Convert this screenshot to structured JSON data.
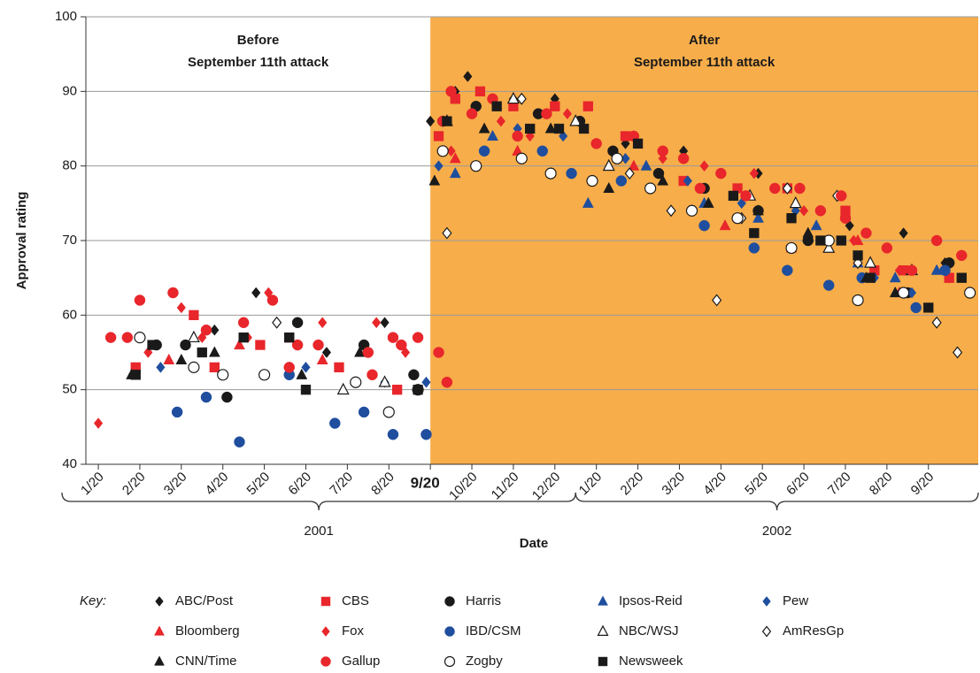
{
  "chart_data": {
    "type": "scatter",
    "xlabel": "Date",
    "ylabel": "Approval rating",
    "ylim": [
      40,
      100
    ],
    "yticks": [
      40,
      50,
      60,
      70,
      80,
      90,
      100
    ],
    "grid": true,
    "xlim": [
      -0.3,
      21.2
    ],
    "xticks": [
      {
        "value": 0,
        "label": "1/20"
      },
      {
        "value": 1,
        "label": "2/20"
      },
      {
        "value": 2,
        "label": "3/20"
      },
      {
        "value": 3,
        "label": "4/20"
      },
      {
        "value": 4,
        "label": "5/20"
      },
      {
        "value": 5,
        "label": "6/20"
      },
      {
        "value": 6,
        "label": "7/20"
      },
      {
        "value": 7,
        "label": "8/20"
      },
      {
        "value": 8,
        "label": "9/20",
        "bold": true
      },
      {
        "value": 9,
        "label": "10/20"
      },
      {
        "value": 10,
        "label": "11/20"
      },
      {
        "value": 11,
        "label": "12/20"
      },
      {
        "value": 12,
        "label": "1/20"
      },
      {
        "value": 13,
        "label": "2/20"
      },
      {
        "value": 14,
        "label": "3/20"
      },
      {
        "value": 15,
        "label": "4/20"
      },
      {
        "value": 16,
        "label": "5/20"
      },
      {
        "value": 17,
        "label": "6/20"
      },
      {
        "value": 18,
        "label": "7/20"
      },
      {
        "value": 19,
        "label": "8/20"
      },
      {
        "value": 20,
        "label": "9/20"
      }
    ],
    "years": [
      "2001",
      "2002"
    ],
    "shade_color": "#f7ad4a",
    "annotations": [
      [
        "Before",
        "September 11th attack"
      ],
      [
        "After",
        "September 11th attack"
      ]
    ],
    "legend_title": "Key:",
    "series": [
      {
        "name": "ABC/Post",
        "color": "#1a1a1a",
        "marker": "diamond",
        "x": [
          2.8,
          3.8,
          5.5,
          6.9,
          8.0,
          8.6,
          8.9,
          10.0,
          11.0,
          12.7,
          14.1,
          15.9,
          16.9,
          18.1,
          19.4,
          20.4
        ],
        "values": [
          58,
          63,
          55,
          59,
          86,
          90,
          92,
          89,
          89,
          83,
          82,
          79,
          77,
          72,
          71,
          67
        ]
      },
      {
        "name": "CBS",
        "color": "#e8262b",
        "marker": "square",
        "x": [
          0.9,
          2.3,
          2.8,
          3.9,
          4.6,
          5.8,
          7.2,
          8.2,
          8.6,
          9.2,
          10.0,
          11.0,
          11.8,
          12.7,
          14.1,
          15.4,
          16.6,
          18.0,
          18.7,
          19.4,
          20.5
        ],
        "values": [
          53,
          60,
          53,
          56,
          57,
          53,
          50,
          84,
          89,
          90,
          88,
          88,
          88,
          84,
          78,
          77,
          77,
          74,
          66,
          66,
          65
        ]
      },
      {
        "name": "Harris",
        "color": "#1a1a1a",
        "marker": "circle",
        "x": [
          1.4,
          2.1,
          3.1,
          4.8,
          6.4,
          7.6,
          8.3,
          9.1,
          10.6,
          11.6,
          12.4,
          13.5,
          14.6,
          15.9,
          17.1,
          18.3,
          19.5,
          20.5
        ],
        "values": [
          56,
          56,
          49,
          59,
          56,
          52,
          86,
          88,
          87,
          86,
          82,
          79,
          77,
          74,
          70,
          62,
          63,
          67
        ]
      },
      {
        "name": "Ipsos-Reid",
        "color": "#1f4e9e",
        "marker": "triangle",
        "x": [
          8.6,
          9.5,
          11.8,
          13.2,
          14.6,
          15.9,
          17.3,
          18.3,
          19.2,
          20.2
        ],
        "values": [
          79,
          84,
          75,
          80,
          75,
          73,
          72,
          67,
          65,
          66
        ]
      },
      {
        "name": "Pew",
        "color": "#1f4e9e",
        "marker": "diamond",
        "x": [
          1.5,
          4.6,
          5.0,
          6.9,
          7.9,
          8.2,
          10.1,
          11.2,
          12.7,
          14.2,
          15.5,
          16.8,
          18.7,
          19.6
        ],
        "values": [
          53,
          52,
          53,
          51,
          51,
          80,
          85,
          84,
          81,
          78,
          75,
          74,
          65,
          63
        ]
      },
      {
        "name": "Bloomberg",
        "color": "#e8262b",
        "marker": "triangle",
        "x": [
          1.7,
          3.4,
          5.4,
          8.6,
          10.1,
          12.9,
          15.1,
          16.7,
          18.3,
          19.3
        ],
        "values": [
          54,
          56,
          54,
          81,
          82,
          80,
          72,
          69,
          70,
          63
        ]
      },
      {
        "name": "Fox",
        "color": "#e8262b",
        "marker": "diamond",
        "x": [
          0,
          1.2,
          2.0,
          2.5,
          3.6,
          4.1,
          5.4,
          6.7,
          7.4,
          8.5,
          9.7,
          10.4,
          11.3,
          12.5,
          13.6,
          14.6,
          15.8,
          17.0,
          18.2,
          19.3,
          20.5
        ],
        "values": [
          45.5,
          55,
          61,
          57,
          57,
          63,
          59,
          59,
          55,
          82,
          86,
          84,
          87,
          81,
          81,
          80,
          79,
          74,
          70,
          66,
          65
        ]
      },
      {
        "name": "IBD/CSM",
        "color": "#1f4e9e",
        "marker": "circle",
        "x": [
          1.9,
          2.6,
          3.4,
          4.6,
          5.7,
          6.4,
          7.1,
          7.9,
          9.3,
          10.7,
          11.4,
          12.6,
          14.6,
          15.8,
          16.6,
          17.6,
          18.4,
          19.7,
          20.4
        ],
        "values": [
          47,
          49,
          43,
          52,
          45.5,
          47,
          44,
          44,
          82,
          82,
          79,
          78,
          72,
          69,
          66,
          64,
          65,
          61,
          66
        ]
      },
      {
        "name": "NBC/WSJ",
        "color": "#1a1a1a",
        "marker": "triangle",
        "hollow": true,
        "x": [
          2.3,
          5.9,
          6.9,
          8.4,
          10.0,
          11.5,
          12.3,
          15.7,
          16.8,
          17.6,
          18.6,
          19.6
        ],
        "values": [
          57,
          50,
          51,
          86,
          89,
          86,
          80,
          76,
          75,
          69,
          67,
          66
        ]
      },
      {
        "name": "AmResGp",
        "color": "#1a1a1a",
        "marker": "diamond",
        "hollow": true,
        "x": [
          4.3,
          8.4,
          10.2,
          12.8,
          13.8,
          14.9,
          15.5,
          16.6,
          17.8,
          18.3,
          20.2,
          20.7
        ],
        "values": [
          59,
          71,
          89,
          79,
          74,
          62,
          73,
          77,
          76,
          67,
          59,
          55
        ]
      },
      {
        "name": "CNN/Time",
        "color": "#1a1a1a",
        "marker": "triangle",
        "x": [
          0.8,
          2.0,
          2.8,
          4.9,
          6.3,
          8.1,
          9.3,
          10.9,
          12.3,
          13.6,
          14.7,
          15.9,
          17.1,
          18.5,
          19.2
        ],
        "values": [
          52,
          54,
          55,
          52,
          55,
          78,
          85,
          85,
          77,
          78,
          75,
          74,
          71,
          65,
          63
        ]
      },
      {
        "name": "Gallup",
        "color": "#e8262b",
        "marker": "circle",
        "x": [
          0.3,
          0.7,
          1.0,
          1.8,
          2.6,
          3.5,
          4.2,
          4.6,
          4.8,
          5.3,
          6.5,
          6.6,
          7.1,
          7.3,
          7.7,
          8.2,
          8.4,
          8.3,
          8.5,
          9.0,
          9.5,
          10.1,
          10.8,
          12.0,
          12.9,
          13.6,
          14.1,
          14.5,
          15.0,
          15.6,
          16.3,
          16.9,
          17.4,
          17.9,
          18.0,
          18.5,
          19.0,
          19.6,
          20.2,
          20.8
        ],
        "values": [
          57,
          57,
          62,
          63,
          58,
          59,
          62,
          53,
          56,
          56,
          55,
          52,
          57,
          56,
          57,
          55,
          51,
          86,
          90,
          87,
          89,
          84,
          87,
          83,
          84,
          82,
          81,
          77,
          79,
          76,
          77,
          77,
          74,
          76,
          73,
          71,
          69,
          66,
          70,
          68
        ]
      },
      {
        "name": "Zogby",
        "color": "#1a1a1a",
        "marker": "circle",
        "hollow": true,
        "x": [
          1.0,
          2.3,
          3.0,
          4.0,
          6.2,
          7.0,
          7.7,
          8.3,
          9.1,
          10.2,
          10.9,
          11.9,
          12.5,
          13.3,
          14.3,
          15.4,
          16.7,
          17.6,
          18.3,
          19.4,
          21.0
        ],
        "values": [
          57,
          53,
          52,
          52,
          51,
          47,
          50,
          82,
          80,
          81,
          79,
          78,
          81,
          77,
          74,
          73,
          69,
          70,
          62,
          63,
          63
        ]
      },
      {
        "name": "Newsweek",
        "color": "#1a1a1a",
        "marker": "square",
        "x": [
          0.9,
          1.3,
          2.5,
          3.5,
          4.6,
          5.0,
          7.7,
          8.4,
          9.6,
          10.4,
          11.1,
          11.7,
          13.0,
          15.3,
          15.8,
          16.7,
          17.4,
          17.9,
          18.3,
          18.6,
          20.0,
          20.8
        ],
        "values": [
          52,
          56,
          55,
          57,
          57,
          50,
          50,
          86,
          88,
          85,
          85,
          85,
          83,
          76,
          71,
          73,
          70,
          70,
          68,
          65,
          61,
          65
        ]
      }
    ]
  }
}
